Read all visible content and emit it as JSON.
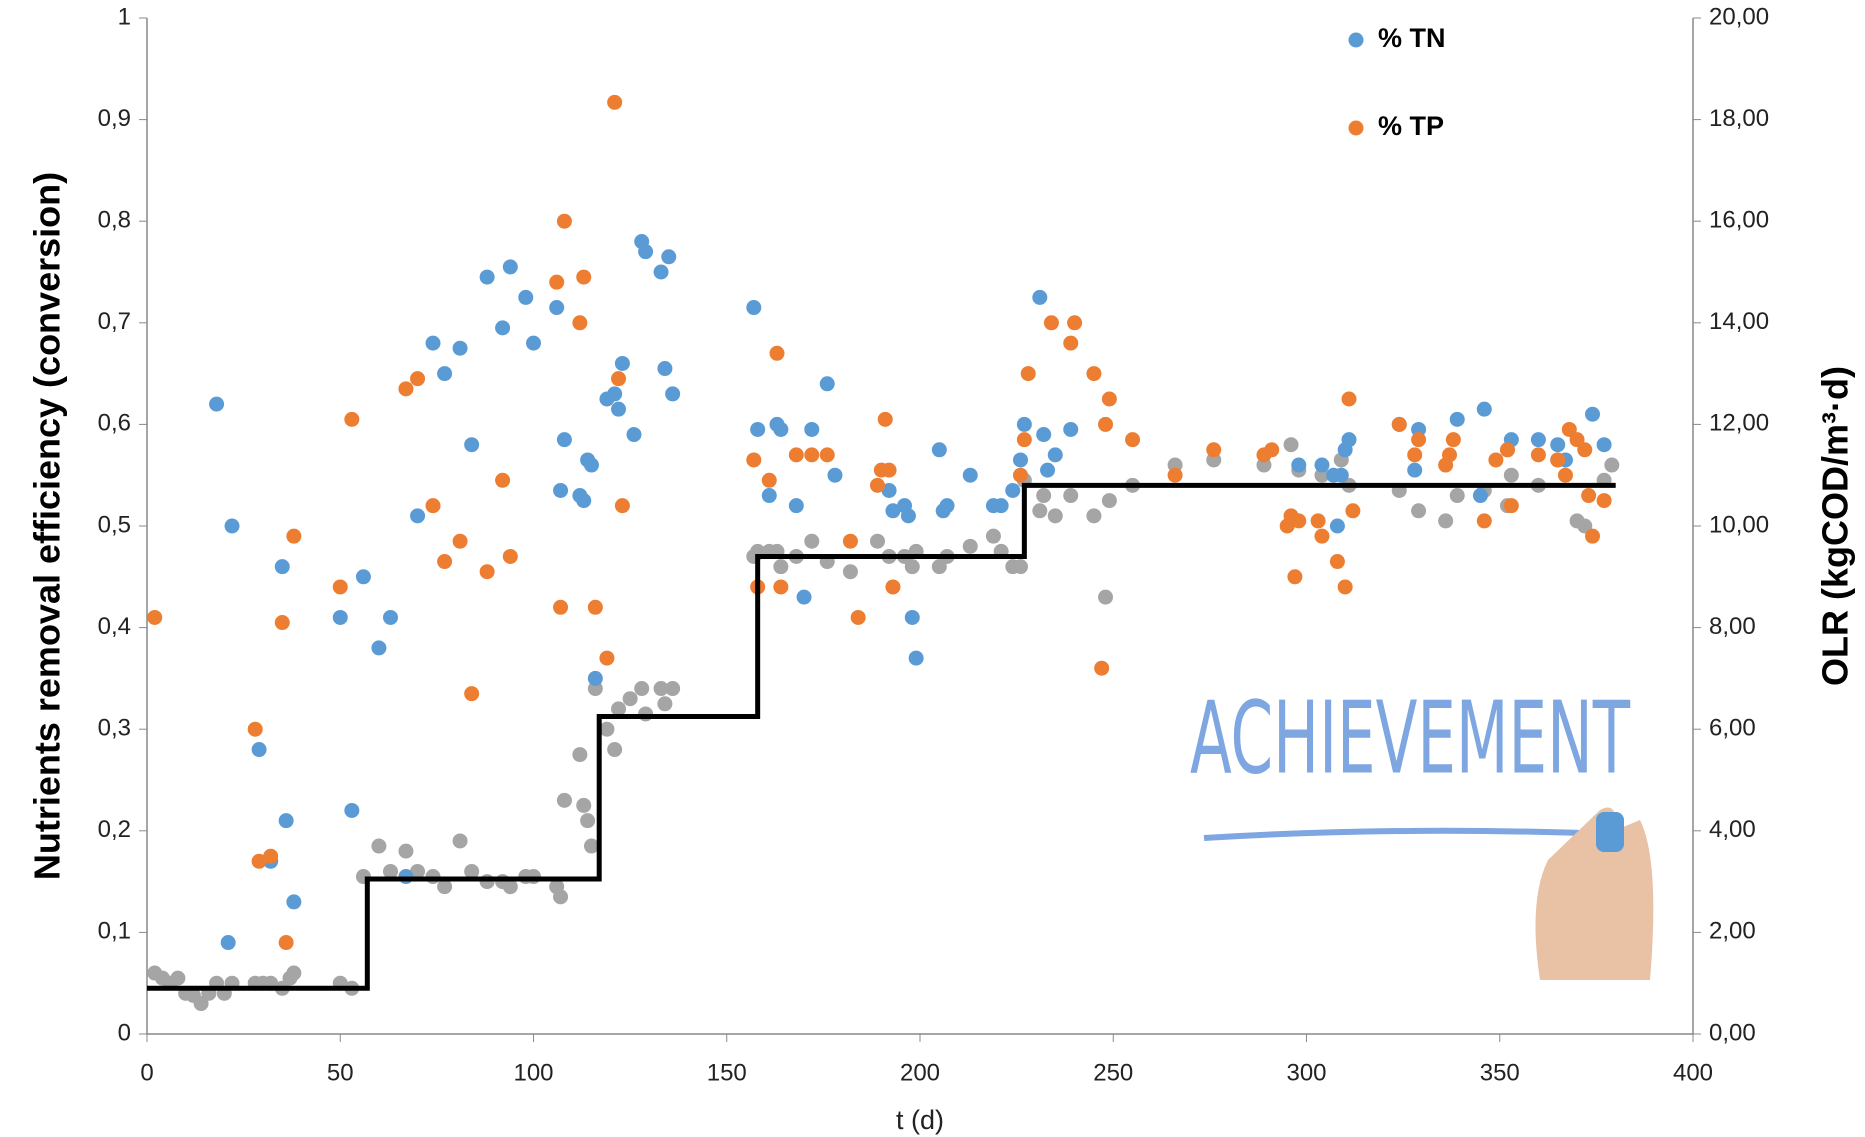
{
  "chart_data": {
    "type": "scatter",
    "x_label": "t (d)",
    "y_label": "Nutrients removal efficiency  (conversion)",
    "y2_label": "OLR (kgCOD/m³·d)",
    "annotation": "ACHIEVEMENT",
    "legend": "top-right",
    "xlim": [
      0,
      400
    ],
    "xticks": [
      0,
      50,
      100,
      150,
      200,
      250,
      300,
      350,
      400
    ],
    "ylim": [
      0,
      1
    ],
    "yticks": [
      0,
      {
        "value": 0.1,
        "label": "0,1"
      },
      {
        "value": 0.2,
        "label": "0,2"
      },
      {
        "value": 0.3,
        "label": "0,3"
      },
      {
        "value": 0.4,
        "label": "0,4"
      },
      {
        "value": 0.5,
        "label": "0,5"
      },
      {
        "value": 0.6,
        "label": "0,6"
      },
      {
        "value": 0.7,
        "label": "0,7"
      },
      {
        "value": 0.8,
        "label": "0,8"
      },
      {
        "value": 0.9,
        "label": "0,9"
      },
      1
    ],
    "y2lim": [
      0,
      20
    ],
    "y2ticks": [
      {
        "value": 0,
        "label": "0,00"
      },
      {
        "value": 2,
        "label": "2,00"
      },
      {
        "value": 4,
        "label": "4,00"
      },
      {
        "value": 6,
        "label": "6,00"
      },
      {
        "value": 8,
        "label": "8,00"
      },
      {
        "value": 10,
        "label": "10,00"
      },
      {
        "value": 12,
        "label": "12,00"
      },
      {
        "value": 14,
        "label": "14,00"
      },
      {
        "value": 16,
        "label": "16,00"
      },
      {
        "value": 18,
        "label": "18,00"
      },
      {
        "value": 20,
        "label": "20,00"
      }
    ],
    "series": [
      {
        "color": "#a5a5a5",
        "x": [
          2,
          4,
          6,
          8,
          10,
          12,
          14,
          16,
          18,
          20,
          22,
          28,
          30,
          32,
          35,
          37,
          38,
          50,
          53,
          56,
          60,
          63,
          67,
          70,
          74,
          77,
          81,
          84,
          88,
          92,
          94,
          98,
          100,
          106,
          107,
          108,
          112,
          113,
          114,
          115,
          116,
          119,
          121,
          122,
          125,
          128,
          129,
          133,
          134,
          136,
          157,
          158,
          161,
          163,
          164,
          168,
          172,
          176,
          182,
          189,
          192,
          196,
          198,
          199,
          205,
          207,
          213,
          219,
          221,
          224,
          226,
          227,
          231,
          232,
          235,
          239,
          245,
          248,
          249,
          255,
          266,
          276,
          289,
          296,
          298,
          304,
          309,
          311,
          324,
          329,
          336,
          339,
          346,
          352,
          353,
          360,
          365,
          370,
          372,
          377,
          379
        ],
        "values": [
          0.06,
          0.055,
          0.05,
          0.055,
          0.04,
          0.038,
          0.03,
          0.04,
          0.05,
          0.04,
          0.05,
          0.05,
          0.05,
          0.05,
          0.045,
          0.055,
          0.06,
          0.05,
          0.045,
          0.155,
          0.185,
          0.16,
          0.18,
          0.16,
          0.155,
          0.145,
          0.19,
          0.16,
          0.15,
          0.15,
          0.145,
          0.155,
          0.155,
          0.145,
          0.135,
          0.23,
          0.275,
          0.225,
          0.21,
          0.185,
          0.34,
          0.3,
          0.28,
          0.32,
          0.33,
          0.34,
          0.315,
          0.34,
          0.325,
          0.34,
          0.47,
          0.475,
          0.475,
          0.475,
          0.46,
          0.47,
          0.485,
          0.465,
          0.455,
          0.485,
          0.47,
          0.47,
          0.46,
          0.475,
          0.46,
          0.47,
          0.48,
          0.49,
          0.475,
          0.46,
          0.46,
          0.545,
          0.515,
          0.53,
          0.51,
          0.53,
          0.51,
          0.43,
          0.525,
          0.54,
          0.56,
          0.565,
          0.56,
          0.58,
          0.555,
          0.55,
          0.565,
          0.54,
          0.535,
          0.515,
          0.505,
          0.53,
          0.535,
          0.52,
          0.55,
          0.54,
          0.565,
          0.505,
          0.5,
          0.545,
          0.56
        ]
      },
      {
        "name": "% TN",
        "color": "#5b9bd5",
        "x": [
          18,
          22,
          21,
          29,
          32,
          35,
          36,
          38,
          50,
          53,
          56,
          60,
          63,
          67,
          70,
          74,
          77,
          81,
          84,
          88,
          92,
          94,
          98,
          100,
          106,
          107,
          108,
          112,
          113,
          114,
          115,
          116,
          119,
          121,
          122,
          123,
          126,
          128,
          129,
          133,
          134,
          135,
          136,
          157,
          158,
          161,
          163,
          164,
          168,
          170,
          172,
          176,
          178,
          192,
          193,
          196,
          197,
          198,
          199,
          205,
          206,
          207,
          213,
          219,
          221,
          224,
          226,
          227,
          231,
          232,
          233,
          235,
          239,
          298,
          304,
          307,
          308,
          309,
          310,
          311,
          324,
          329,
          328,
          339,
          346,
          345,
          352,
          353,
          360,
          365,
          367,
          374,
          377
        ],
        "values": [
          0.62,
          0.5,
          0.09,
          0.28,
          0.17,
          0.46,
          0.21,
          0.13,
          0.41,
          0.22,
          0.45,
          0.38,
          0.41,
          0.155,
          0.51,
          0.68,
          0.65,
          0.675,
          0.58,
          0.745,
          0.695,
          0.755,
          0.725,
          0.68,
          0.715,
          0.535,
          0.585,
          0.53,
          0.525,
          0.565,
          0.56,
          0.35,
          0.625,
          0.63,
          0.615,
          0.66,
          0.59,
          0.78,
          0.77,
          0.75,
          0.655,
          0.765,
          0.63,
          0.715,
          0.595,
          0.53,
          0.6,
          0.595,
          0.52,
          0.43,
          0.595,
          0.64,
          0.55,
          0.535,
          0.515,
          0.52,
          0.51,
          0.41,
          0.37,
          0.575,
          0.515,
          0.52,
          0.55,
          0.52,
          0.52,
          0.535,
          0.565,
          0.6,
          0.725,
          0.59,
          0.555,
          0.57,
          0.595,
          0.56,
          0.56,
          0.55,
          0.5,
          0.55,
          0.575,
          0.585,
          0.6,
          0.595,
          0.555,
          0.605,
          0.615,
          0.53,
          0.575,
          0.585,
          0.585,
          0.58,
          0.565,
          0.61,
          0.58
        ]
      },
      {
        "name": "% TP",
        "color": "#ed7d31",
        "x": [
          2,
          28,
          29,
          32,
          35,
          36,
          38,
          50,
          53,
          67,
          70,
          74,
          77,
          81,
          84,
          88,
          92,
          94,
          106,
          107,
          108,
          112,
          113,
          116,
          119,
          121,
          122,
          123,
          157,
          158,
          161,
          163,
          164,
          168,
          172,
          176,
          182,
          184,
          189,
          190,
          191,
          192,
          193,
          226,
          227,
          228,
          234,
          239,
          240,
          245,
          247,
          248,
          249,
          255,
          266,
          276,
          289,
          291,
          295,
          296,
          297,
          298,
          303,
          304,
          308,
          310,
          311,
          312,
          324,
          328,
          329,
          336,
          337,
          338,
          346,
          349,
          352,
          353,
          360,
          365,
          367,
          368,
          370,
          372,
          373,
          374,
          377
        ],
        "values": [
          0.41,
          0.3,
          0.17,
          0.175,
          0.405,
          0.09,
          0.49,
          0.44,
          0.605,
          0.635,
          0.645,
          0.52,
          0.465,
          0.485,
          0.335,
          0.455,
          0.545,
          0.47,
          0.74,
          0.42,
          0.8,
          0.7,
          0.745,
          0.42,
          0.37,
          0.917,
          0.645,
          0.52,
          0.565,
          0.44,
          0.545,
          0.67,
          0.44,
          0.57,
          0.57,
          0.57,
          0.485,
          0.41,
          0.54,
          0.555,
          0.605,
          0.555,
          0.44,
          0.55,
          0.585,
          0.65,
          0.7,
          0.68,
          0.7,
          0.65,
          0.36,
          0.6,
          0.625,
          0.585,
          0.55,
          0.575,
          0.57,
          0.575,
          0.5,
          0.51,
          0.45,
          0.505,
          0.505,
          0.49,
          0.465,
          0.44,
          0.625,
          0.515,
          0.6,
          0.57,
          0.585,
          0.56,
          0.57,
          0.585,
          0.505,
          0.565,
          0.575,
          0.52,
          0.57,
          0.565,
          0.55,
          0.595,
          0.585,
          0.575,
          0.53,
          0.49,
          0.525
        ]
      },
      {
        "type": "step",
        "axis": "y2",
        "color": "#000000",
        "x": [
          0,
          57,
          57,
          117,
          117,
          158,
          158,
          227,
          227,
          380
        ],
        "values": [
          0.9,
          0.9,
          3.05,
          3.05,
          6.25,
          6.25,
          9.4,
          9.4,
          10.8,
          10.8
        ]
      }
    ]
  }
}
